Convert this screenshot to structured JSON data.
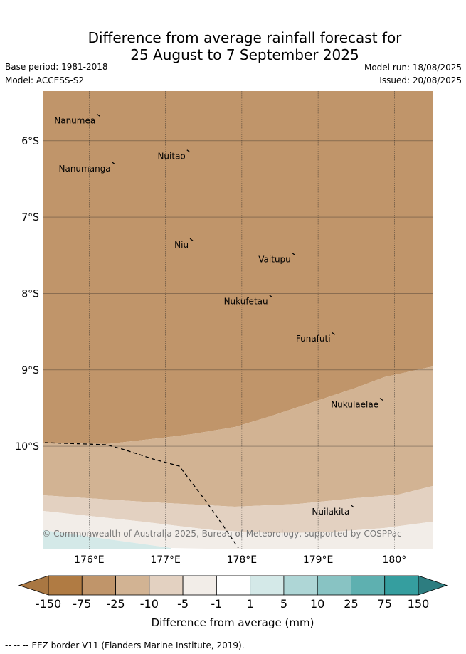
{
  "title_line1": "Difference from average rainfall forecast for",
  "title_line2": "25 August to 7 September 2025",
  "base_period": "Base period: 1981-2018",
  "model": "Model: ACCESS-S2",
  "model_run": "Model run: 18/08/2025",
  "issued": "Issued: 20/08/2025",
  "copyright": "© Commonwealth of Australia 2025, Bureau of Meteorology, supported by COSPPac",
  "map": {
    "lon_range": [
      175.4,
      180.5
    ],
    "lat_range": [
      -5.35,
      -11.35
    ],
    "lon_ticks": [
      {
        "value": 176,
        "label": "176°E"
      },
      {
        "value": 177,
        "label": "177°E"
      },
      {
        "value": 178,
        "label": "178°E"
      },
      {
        "value": 179,
        "label": "179°E"
      },
      {
        "value": 180,
        "label": "180°"
      }
    ],
    "lat_ticks": [
      {
        "value": -6,
        "label": "6°S"
      },
      {
        "value": -7,
        "label": "7°S"
      },
      {
        "value": -8,
        "label": "8°S"
      },
      {
        "value": -9,
        "label": "9°S"
      },
      {
        "value": -10,
        "label": "10°S"
      }
    ],
    "islands": [
      {
        "name": "Nanumea",
        "lon": 176.12,
        "lat": -5.66
      },
      {
        "name": "Nuitao",
        "lon": 177.3,
        "lat": -6.13
      },
      {
        "name": "Nanumanga",
        "lon": 176.32,
        "lat": -6.29
      },
      {
        "name": "Niu",
        "lon": 177.34,
        "lat": -7.29
      },
      {
        "name": "Vaitupu",
        "lon": 178.68,
        "lat": -7.48
      },
      {
        "name": "Nukufetau",
        "lon": 178.38,
        "lat": -8.03
      },
      {
        "name": "Funafuti",
        "lon": 179.2,
        "lat": -8.52
      },
      {
        "name": "Nukulaelae",
        "lon": 179.83,
        "lat": -9.38
      },
      {
        "name": "Nuilakita",
        "lon": 179.45,
        "lat": -10.78
      }
    ],
    "anomaly_bands": [
      {
        "category": "-75 to -25",
        "color": "#c0956a"
      },
      {
        "category": "-25 to -10",
        "color": "#d2b393"
      },
      {
        "category": "-10 to -5",
        "color": "#e3d1c1"
      },
      {
        "category": "-5 to -1",
        "color": "#f2ede8"
      },
      {
        "category": "1 to 5",
        "color": "#d4e9e8"
      }
    ]
  },
  "colorbar": {
    "label": "Difference from average (mm)",
    "ticks": [
      "-150",
      "-75",
      "-25",
      "-10",
      "-5",
      "-1",
      "1",
      "5",
      "10",
      "25",
      "75",
      "150"
    ],
    "colors": [
      "#a97742",
      "#b07b43",
      "#c0956a",
      "#d2b393",
      "#e3d1c1",
      "#f2ede8",
      "#ffffff",
      "#d4e9e8",
      "#aed6d6",
      "#88c3c3",
      "#5eb0b0",
      "#359e9f",
      "#2d7d80"
    ]
  },
  "footer": {
    "legend_symbol": "-- -- --",
    "legend_text": "EEZ border V11 (Flanders Marine Institute, 2019)."
  }
}
